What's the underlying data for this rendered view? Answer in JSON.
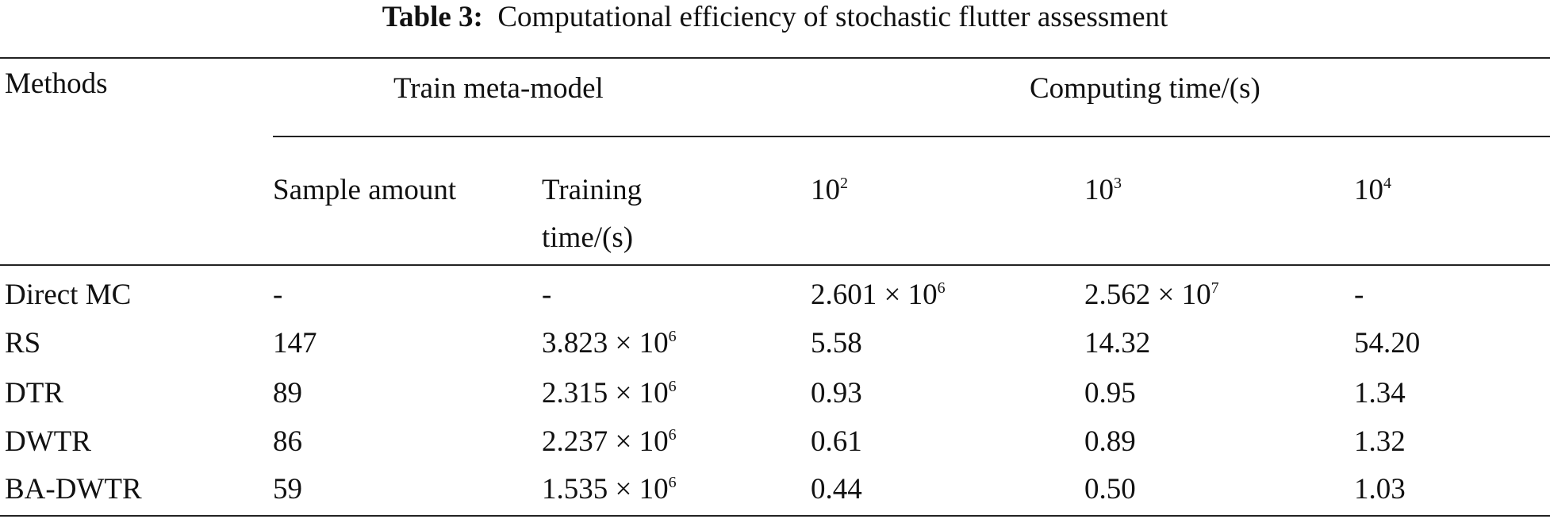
{
  "header": {
    "label": "Table 3:",
    "title": "Computational efficiency of stochastic flutter assessment"
  },
  "table": {
    "group_headers": [
      "Methods",
      "Train meta-model",
      "Computing time/(s)"
    ],
    "sub_headers": [
      "Sample amount",
      "Training time/(s)",
      {
        "base": "10",
        "sup": "2"
      },
      {
        "base": "10",
        "sup": "3"
      },
      {
        "base": "10",
        "sup": "4"
      }
    ],
    "rows": [
      [
        "Direct MC",
        "-",
        "-",
        {
          "base": "2.601 × 10",
          "sup": "6"
        },
        {
          "base": "2.562 × 10",
          "sup": "7"
        },
        "-"
      ],
      [
        "RS",
        "147",
        {
          "base": "3.823 × 10",
          "sup": "6"
        },
        "5.58",
        "14.32",
        "54.20"
      ],
      [
        "DTR",
        "89",
        {
          "base": "2.315 × 10",
          "sup": "6"
        },
        "0.93",
        "0.95",
        "1.34"
      ],
      [
        "DWTR",
        "86",
        {
          "base": "2.237 × 10",
          "sup": "6"
        },
        "0.61",
        "0.89",
        "1.32"
      ],
      [
        "BA-DWTR",
        "59",
        {
          "base": "1.535 × 10",
          "sup": "6"
        },
        "0.44",
        "0.50",
        "1.03"
      ]
    ]
  }
}
